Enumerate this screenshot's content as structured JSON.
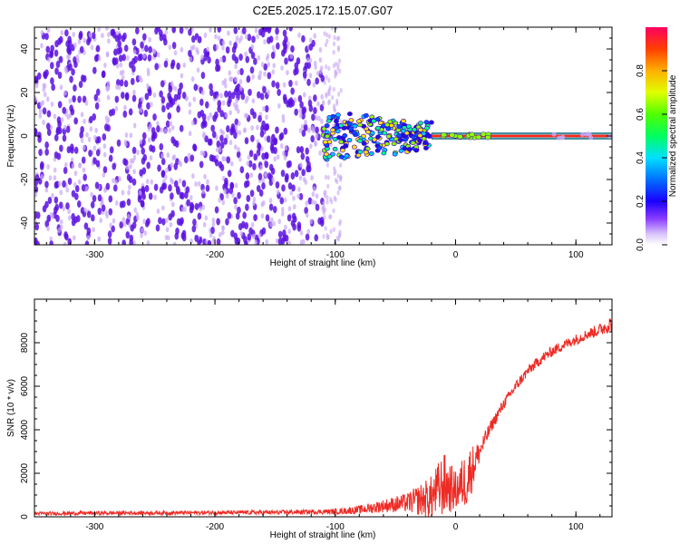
{
  "title": "C2E5.2025.172.15.07.G07",
  "colors": {
    "snr_line": "#ee2a24",
    "fixed_line": "#ff2a1a",
    "dot_dense": "#5a10e0",
    "dot_faint": "#c9a8f5"
  },
  "chart_data": [
    {
      "type": "heatmap",
      "title": "C2E5.2025.172.15.07.G07",
      "xlabel": "Height of straight line (km)",
      "ylabel": "Frequency (Hz)",
      "xlim": [
        -350,
        130
      ],
      "ylim": [
        -50,
        50
      ],
      "xticks": [
        -300,
        -200,
        -100,
        0,
        100
      ],
      "yticks": [
        -40,
        -20,
        0,
        20,
        40
      ],
      "grid": false,
      "colorbar": {
        "label": "Normalized spectral amplitude",
        "range": [
          0,
          1
        ],
        "ticks": [
          "0.0",
          "0.2",
          "0.4",
          "0.6",
          "0.8"
        ],
        "stops": [
          "#ffffff",
          "#c8a8f8",
          "#6a00ff",
          "#0000ff",
          "#00d8ff",
          "#00ff40",
          "#c0ff00",
          "#ffd000",
          "#ff5000",
          "#ff0050"
        ]
      },
      "regions": [
        {
          "label": "dense noise scatter",
          "x": [
            -350,
            -110
          ],
          "y": [
            -50,
            50
          ],
          "amplitude": 0.2
        },
        {
          "label": "faint noise fringe",
          "x": [
            -110,
            -95
          ],
          "y": [
            -50,
            50
          ],
          "amplitude": 0.05
        },
        {
          "label": "scattered signal cluster",
          "x": [
            -110,
            -20
          ],
          "y": [
            -12,
            10
          ],
          "amplitude": 0.5
        },
        {
          "label": "locked carrier line",
          "x": [
            -20,
            130
          ],
          "y": [
            -1,
            1
          ],
          "amplitude": 0.95
        }
      ]
    },
    {
      "type": "line",
      "xlabel": "Height of straight line (km)",
      "ylabel": "SNR (10 * v/v)",
      "xlim": [
        -350,
        130
      ],
      "ylim": [
        0,
        10000
      ],
      "xticks": [
        -300,
        -200,
        -100,
        0,
        100
      ],
      "yticks": [
        0,
        2000,
        4000,
        6000,
        8000
      ],
      "grid": false,
      "series": [
        {
          "x": [
            -350,
            -300,
            -250,
            -200,
            -150,
            -100,
            -80,
            -60,
            -40,
            -20,
            -10,
            0,
            10,
            20,
            30,
            40,
            50,
            60,
            70,
            80,
            90,
            100,
            110,
            120,
            130
          ],
          "y": [
            150,
            170,
            180,
            190,
            200,
            240,
            320,
            500,
            650,
            900,
            1500,
            1200,
            1800,
            3000,
            4200,
            5200,
            6000,
            6700,
            7200,
            7600,
            7900,
            8150,
            8400,
            8600,
            8900
          ],
          "noise": [
            80,
            90,
            90,
            90,
            100,
            120,
            200,
            300,
            450,
            1000,
            1500,
            900,
            1400,
            500,
            300,
            250,
            250,
            250,
            250,
            250,
            250,
            250,
            250,
            300,
            400
          ]
        }
      ]
    }
  ]
}
